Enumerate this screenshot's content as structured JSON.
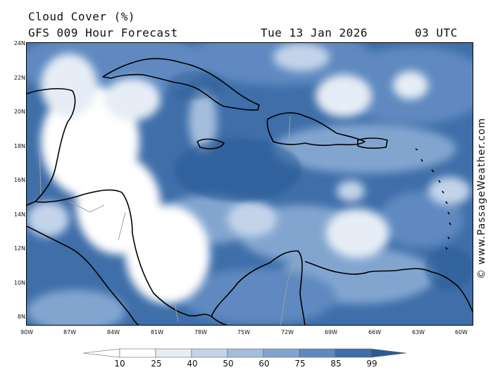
{
  "header": {
    "title": "Cloud Cover (%)",
    "subtitle": "GFS 009 Hour Forecast",
    "date": "Tue 13 Jan 2026",
    "time": "03 UTC"
  },
  "credit": "© www.PassageWeather.com",
  "axes": {
    "lat_labels": [
      "24N",
      "22N",
      "20N",
      "18N",
      "16N",
      "14N",
      "12N",
      "10N",
      "8N"
    ],
    "lon_labels": [
      "90W",
      "87W",
      "84W",
      "81W",
      "78W",
      "75W",
      "72W",
      "69W",
      "66W",
      "63W",
      "60W"
    ]
  },
  "colorbar": {
    "labels": [
      "10",
      "25",
      "40",
      "50",
      "60",
      "75",
      "85",
      "99"
    ],
    "colors": [
      "#ffffff",
      "#e6edf6",
      "#c3d4ea",
      "#a3bddd",
      "#82a5d0",
      "#5f89c0",
      "#3f6ea9",
      "#2c5a94"
    ]
  },
  "colors": {
    "land_outline": "#000000",
    "border_lines": "#a0a0a0",
    "dense_cloud": "#3f6ea9"
  }
}
